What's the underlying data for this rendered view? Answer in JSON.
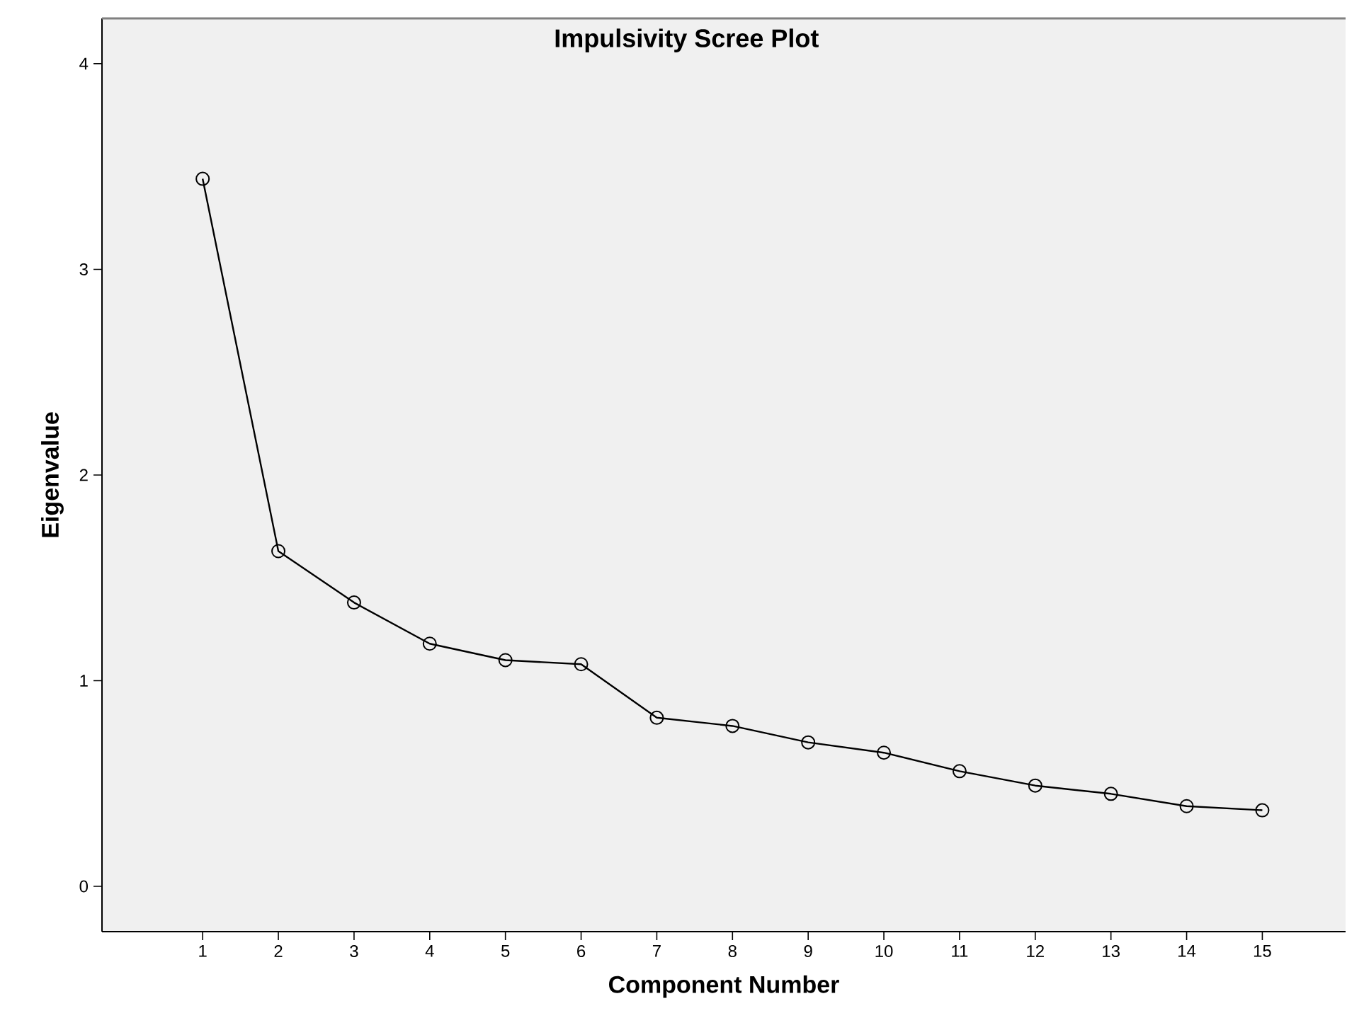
{
  "chart_data": {
    "type": "line",
    "title": "Impulsivity Scree Plot",
    "xlabel": "Component Number",
    "ylabel": "Eigenvalue",
    "x": [
      1,
      2,
      3,
      4,
      5,
      6,
      7,
      8,
      9,
      10,
      11,
      12,
      13,
      14,
      15
    ],
    "series": [
      {
        "color": "#000000",
        "values": [
          3.44,
          1.63,
          1.38,
          1.18,
          1.1,
          1.08,
          0.82,
          0.78,
          0.7,
          0.65,
          0.56,
          0.49,
          0.45,
          0.39,
          0.37
        ]
      }
    ],
    "xlim": [
      -0.33,
      16.1
    ],
    "ylim": [
      -0.22,
      4.22
    ],
    "xticks": [
      1,
      2,
      3,
      4,
      5,
      6,
      7,
      8,
      9,
      10,
      11,
      12,
      13,
      14,
      15
    ],
    "yticks": [
      0,
      1,
      2,
      3,
      4
    ],
    "marker": "circle",
    "line_style": "solid"
  }
}
